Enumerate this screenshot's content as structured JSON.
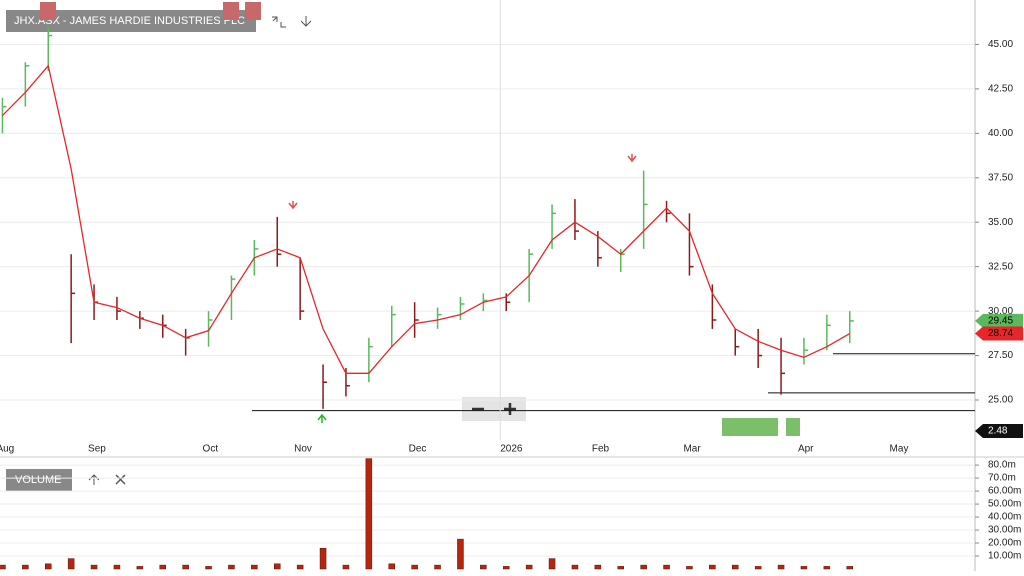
{
  "chart_data": [
    {
      "type": "ohlc",
      "title": "JHX.ASX - JAMES HARDIE INDUSTRIES PLC",
      "categories": [
        "Aug",
        null,
        null,
        null,
        "Sep",
        null,
        null,
        null,
        null,
        "Oct",
        null,
        null,
        null,
        "Nov",
        null,
        null,
        null,
        null,
        "Dec",
        null,
        null,
        null,
        "2026",
        null,
        null,
        null,
        "Feb",
        null,
        null,
        null,
        "Mar",
        null,
        null,
        null,
        null,
        "Apr",
        null,
        null,
        null,
        "May",
        null,
        null
      ],
      "high": [
        42,
        44,
        46,
        33.2,
        31.5,
        30.8,
        30,
        29.8,
        29,
        30,
        32,
        34,
        35.3,
        33,
        27,
        26.8,
        28.5,
        30.3,
        30.5,
        30.2,
        30.8,
        31,
        31,
        33.5,
        36,
        36.3,
        34.5,
        33.5,
        37.9,
        36.2,
        35.5,
        31.5,
        29,
        29,
        28.5,
        28.5,
        29.8,
        30,
        null,
        null,
        null,
        null
      ],
      "low": [
        40,
        41.5,
        43.5,
        28.2,
        29.5,
        29.5,
        29,
        28.5,
        27.5,
        28,
        29.5,
        32,
        32.5,
        29.5,
        24.5,
        25.2,
        26,
        28,
        28.5,
        29,
        29.5,
        30,
        30,
        30.5,
        33.5,
        34,
        32.5,
        32.2,
        33.5,
        35,
        32,
        29,
        27.5,
        26.8,
        25.3,
        27,
        27.8,
        28.2,
        null,
        null,
        null,
        null
      ],
      "close": [
        41.5,
        43.8,
        45.5,
        31,
        30.5,
        30,
        29.6,
        29.2,
        28.5,
        29.5,
        31.8,
        33.5,
        33.2,
        30,
        26,
        25.8,
        28,
        29.8,
        29.5,
        29.8,
        30.4,
        30.6,
        30.5,
        33.2,
        35.5,
        34.5,
        33,
        33.2,
        36,
        35.5,
        32.5,
        29.5,
        28,
        27.5,
        26.5,
        27.8,
        29.2,
        29.45,
        null,
        null,
        null,
        null
      ],
      "ma": [
        41,
        42.3,
        43.8,
        38,
        30.5,
        30.2,
        29.6,
        29.2,
        28.5,
        28.9,
        31,
        33,
        33.5,
        33,
        29,
        26.5,
        26.5,
        28,
        29.3,
        29.5,
        29.8,
        30.5,
        30.8,
        32,
        34,
        35,
        34.2,
        33.2,
        34.5,
        35.8,
        34.5,
        31,
        29,
        28.3,
        27.8,
        27.4,
        28,
        28.74,
        null,
        null,
        null,
        null
      ],
      "up_color": "#5cb85c",
      "down_color": "#8b1a1a",
      "ma_color": "#e8262a",
      "levels": [
        24.4,
        25.4,
        27.6
      ],
      "indicator_value": 2.48,
      "ylim": [
        22.75,
        47.5
      ],
      "yticks": [
        {
          "value": 25,
          "label": "25.00"
        },
        {
          "value": 27.5,
          "label": "27.50"
        },
        {
          "value": 30,
          "label": "30.00"
        },
        {
          "value": 32.5,
          "label": "32.50"
        },
        {
          "value": 35,
          "label": "35.00"
        },
        {
          "value": 37.5,
          "label": "37.50"
        },
        {
          "value": 40,
          "label": "40.00"
        },
        {
          "value": 42.5,
          "label": "42.50"
        },
        {
          "value": 45,
          "label": "45.00"
        }
      ],
      "grid": true
    },
    {
      "type": "bar",
      "title": "VOLUME",
      "color": "#b5260f",
      "values": [
        3,
        3,
        4,
        8,
        3,
        3,
        2,
        3,
        3,
        2,
        3,
        3,
        4,
        3,
        16,
        3,
        85,
        4,
        3,
        3,
        23,
        3,
        2,
        3,
        8,
        3,
        3,
        2,
        3,
        3,
        2,
        3,
        3,
        2,
        3,
        2,
        2,
        2,
        null,
        null,
        null,
        null
      ],
      "ylim": [
        0,
        87
      ],
      "yticks": [
        {
          "value": 10,
          "label": "10.00m"
        },
        {
          "value": 20,
          "label": "20.00m"
        },
        {
          "value": 30,
          "label": "30.00m"
        },
        {
          "value": 40,
          "label": "40.00m"
        },
        {
          "value": 50,
          "label": "50.00m"
        },
        {
          "value": 60,
          "label": "60.00m"
        },
        {
          "value": 70,
          "label": "70.0m"
        },
        {
          "value": 80,
          "label": "80.0m"
        }
      ],
      "grid": true
    }
  ]
}
